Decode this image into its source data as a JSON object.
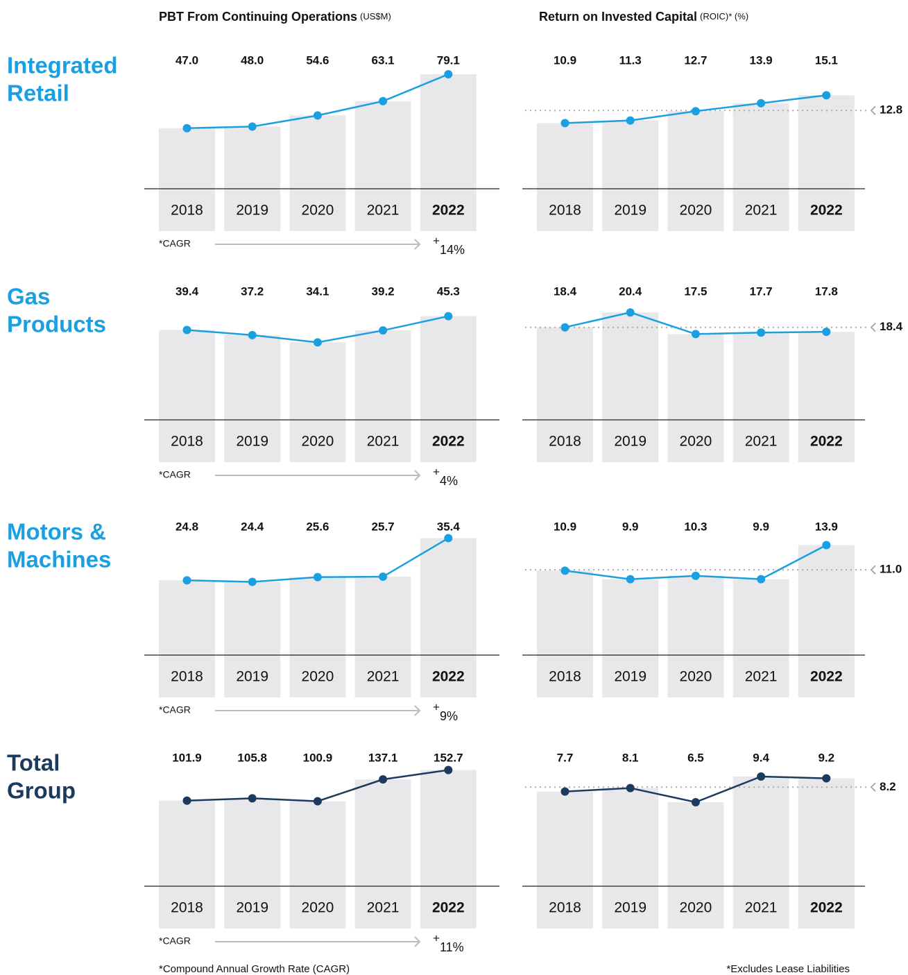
{
  "columns": [
    {
      "title": "PBT From Continuing Operations",
      "unit": "(US$M)"
    },
    {
      "title": "Return on Invested Capital",
      "unit": "(ROIC)* (%)"
    }
  ],
  "rows": [
    {
      "label": [
        "Integrated",
        "Retail"
      ],
      "color": "#1a9fe0"
    },
    {
      "label": [
        "Gas",
        "Products"
      ],
      "color": "#1a9fe0"
    },
    {
      "label": [
        "Motors &",
        "Machines"
      ],
      "color": "#1a9fe0"
    },
    {
      "label": [
        "Total",
        "Group"
      ],
      "color": "#1c3a5e"
    }
  ],
  "footnotes": [
    "*Compound Annual Growth Rate (CAGR)",
    "*Excludes Lease Liabilities"
  ],
  "chart_data": [
    {
      "type": "combo",
      "categories": [
        "2018",
        "2019",
        "2020",
        "2021",
        "2022"
      ],
      "values": [
        47.0,
        48.0,
        54.6,
        63.1,
        79.1
      ],
      "value_labels": [
        "47.0",
        "48.0",
        "54.6",
        "63.1",
        "79.1"
      ],
      "color": "#1a9fe0",
      "bar_color": "#e8e8ea",
      "ylim": [
        11,
        82
      ],
      "cagr_label": "*CAGR",
      "cagr_sign": "+",
      "cagr_value": "14%"
    },
    {
      "type": "combo",
      "categories": [
        "2018",
        "2019",
        "2020",
        "2021",
        "2022"
      ],
      "values": [
        10.9,
        11.3,
        12.7,
        13.9,
        15.1
      ],
      "value_labels": [
        "10.9",
        "11.3",
        "12.7",
        "13.9",
        "15.1"
      ],
      "color": "#1a9fe0",
      "bar_color": "#e8e8ea",
      "ylim": [
        1,
        19
      ],
      "average": 12.8,
      "average_label": "12.8"
    },
    {
      "type": "combo",
      "categories": [
        "2018",
        "2019",
        "2020",
        "2021",
        "2022"
      ],
      "values": [
        39.4,
        37.2,
        34.1,
        39.2,
        45.3
      ],
      "value_labels": [
        "39.4",
        "37.2",
        "34.1",
        "39.2",
        "45.3"
      ],
      "color": "#1a9fe0",
      "bar_color": "#e8e8ea",
      "ylim": [
        1,
        52
      ],
      "cagr_label": "*CAGR",
      "cagr_sign": "+",
      "cagr_value": "4%"
    },
    {
      "type": "combo",
      "categories": [
        "2018",
        "2019",
        "2020",
        "2021",
        "2022"
      ],
      "values": [
        18.4,
        20.4,
        17.5,
        17.7,
        17.8
      ],
      "value_labels": [
        "18.4",
        "20.4",
        "17.5",
        "17.7",
        "17.8"
      ],
      "color": "#1a9fe0",
      "bar_color": "#e8e8ea",
      "ylim": [
        6,
        22
      ],
      "average": 18.4,
      "average_label": "18.4"
    },
    {
      "type": "combo",
      "categories": [
        "2018",
        "2019",
        "2020",
        "2021",
        "2022"
      ],
      "values": [
        24.8,
        24.4,
        25.6,
        25.7,
        35.4
      ],
      "value_labels": [
        "24.8",
        "24.4",
        "25.6",
        "25.7",
        "35.4"
      ],
      "color": "#1a9fe0",
      "bar_color": "#e8e8ea",
      "ylim": [
        6,
        36
      ],
      "cagr_label": "*CAGR",
      "cagr_sign": "+",
      "cagr_value": "9%"
    },
    {
      "type": "combo",
      "categories": [
        "2018",
        "2019",
        "2020",
        "2021",
        "2022"
      ],
      "values": [
        10.9,
        9.9,
        10.3,
        9.9,
        13.9
      ],
      "value_labels": [
        "10.9",
        "9.9",
        "10.3",
        "9.9",
        "13.9"
      ],
      "color": "#1a9fe0",
      "bar_color": "#e8e8ea",
      "ylim": [
        1,
        15
      ],
      "average": 11.0,
      "average_label": "11.0"
    },
    {
      "type": "combo",
      "categories": [
        "2018",
        "2019",
        "2020",
        "2021",
        "2022"
      ],
      "values": [
        101.9,
        105.8,
        100.9,
        137.1,
        152.7
      ],
      "value_labels": [
        "101.9",
        "105.8",
        "100.9",
        "137.1",
        "152.7"
      ],
      "color": "#1c3a5e",
      "bar_color": "#e8e8ea",
      "ylim": [
        -40,
        158
      ],
      "cagr_label": "*CAGR",
      "cagr_sign": "+",
      "cagr_value": "11%"
    },
    {
      "type": "combo",
      "categories": [
        "2018",
        "2019",
        "2020",
        "2021",
        "2022"
      ],
      "values": [
        7.7,
        8.1,
        6.5,
        9.4,
        9.2
      ],
      "value_labels": [
        "7.7",
        "8.1",
        "6.5",
        "9.4",
        "9.2"
      ],
      "color": "#1c3a5e",
      "bar_color": "#e8e8ea",
      "ylim": [
        -3,
        10.5
      ],
      "average": 8.2,
      "average_label": "8.2"
    }
  ]
}
